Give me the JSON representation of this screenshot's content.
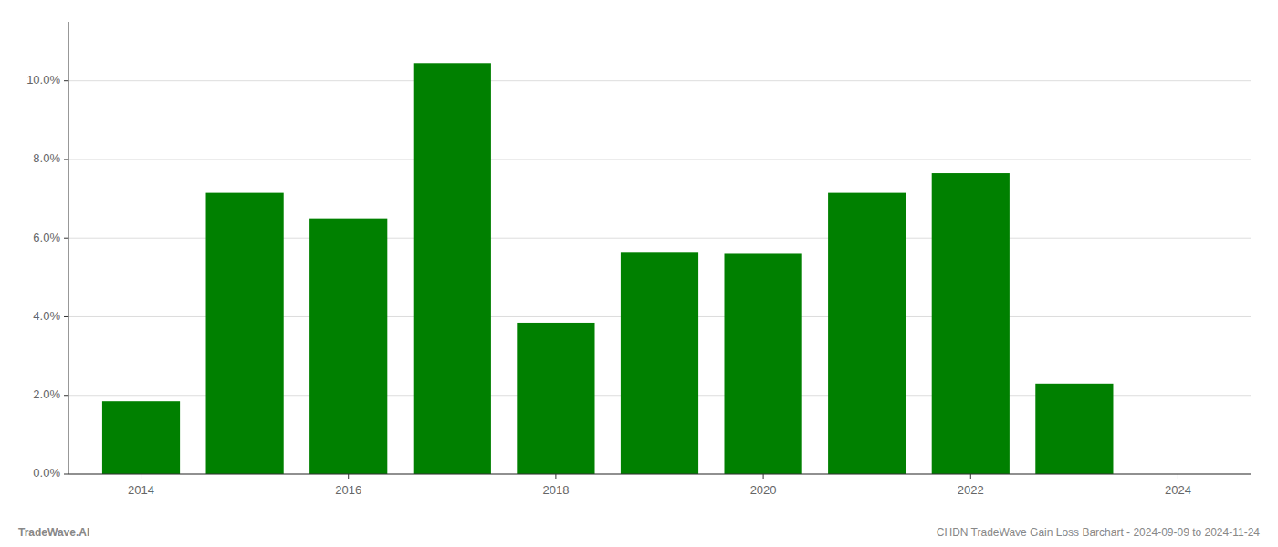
{
  "chart_data": {
    "type": "bar",
    "x": [
      2014,
      2015,
      2016,
      2017,
      2018,
      2019,
      2020,
      2021,
      2022,
      2023,
      2024
    ],
    "values": [
      0.0185,
      0.0715,
      0.065,
      0.1045,
      0.0385,
      0.0565,
      0.056,
      0.0715,
      0.0765,
      0.023,
      0.0
    ],
    "color": "#008000",
    "xlim": [
      2013.3,
      2024.7
    ],
    "xticks": [
      2014,
      2016,
      2018,
      2020,
      2022,
      2024
    ],
    "ylim": [
      0,
      0.115
    ],
    "yticks": [
      {
        "value": 0.0,
        "label": "0.0%"
      },
      {
        "value": 0.02,
        "label": "2.0%"
      },
      {
        "value": 0.04,
        "label": "4.0%"
      },
      {
        "value": 0.06,
        "label": "6.0%"
      },
      {
        "value": 0.08,
        "label": "8.0%"
      },
      {
        "value": 0.1,
        "label": "10.0%"
      }
    ],
    "grid": true,
    "annotations": [
      "TradeWave.AI",
      "CHDN TradeWave Gain Loss Barchart - 2024-09-09 to 2024-11-24"
    ]
  }
}
